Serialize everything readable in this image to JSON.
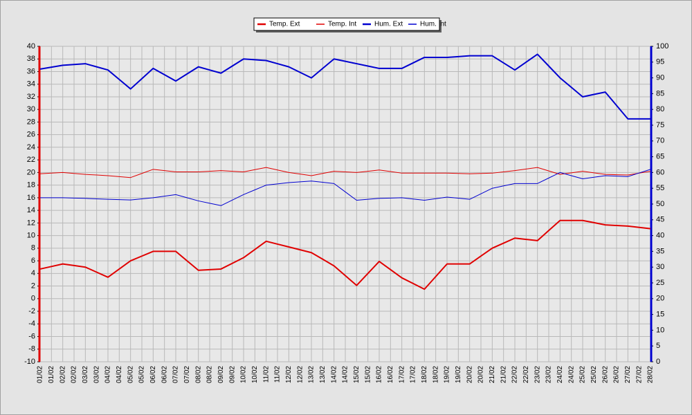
{
  "chart_data": {
    "type": "line",
    "categories": [
      "01/02",
      "01/02",
      "02/02",
      "02/02",
      "03/02",
      "03/02",
      "04/02",
      "04/02",
      "05/02",
      "05/02",
      "06/02",
      "06/02",
      "07/02",
      "07/02",
      "08/02",
      "08/02",
      "09/02",
      "09/02",
      "10/02",
      "10/02",
      "11/02",
      "11/02",
      "12/02",
      "12/02",
      "13/02",
      "13/02",
      "14/02",
      "14/02",
      "15/02",
      "15/02",
      "16/02",
      "16/02",
      "17/02",
      "17/02",
      "18/02",
      "18/02",
      "19/02",
      "19/02",
      "20/02",
      "20/02",
      "21/02",
      "21/02",
      "22/02",
      "22/02",
      "23/02",
      "23/02",
      "24/02",
      "24/02",
      "25/02",
      "25/02",
      "26/02",
      "26/02",
      "27/02",
      "27/02",
      "28/02"
    ],
    "series": [
      {
        "name": "Temp. Ext",
        "color": "#e00000",
        "line_width": 2,
        "axis": "y",
        "values": [
          4.7,
          5.1,
          5.5,
          5.25,
          5.0,
          4.2,
          3.4,
          4.7,
          6.0,
          6.75,
          7.5,
          7.5,
          7.5,
          6.0,
          4.5,
          4.6,
          4.7,
          5.6,
          6.5,
          7.8,
          9.1,
          8.65,
          8.2,
          7.75,
          7.3,
          6.25,
          5.2,
          3.65,
          2.1,
          4.0,
          5.9,
          4.6,
          3.3,
          2.4,
          1.5,
          3.5,
          5.5,
          5.5,
          5.5,
          6.75,
          8.0,
          8.8,
          9.6,
          9.4,
          9.2,
          10.8,
          12.4,
          12.4,
          12.4,
          12.05,
          11.7,
          11.6,
          11.5,
          11.3,
          11.1
        ]
      },
      {
        "name": "Temp. Int",
        "color": "#e00000",
        "line_width": 1,
        "axis": "y",
        "values": [
          19.8,
          19.9,
          20.0,
          19.85,
          19.7,
          19.6,
          19.5,
          19.35,
          19.2,
          19.85,
          20.5,
          20.3,
          20.1,
          20.1,
          20.1,
          20.2,
          20.3,
          20.2,
          20.1,
          20.45,
          20.8,
          20.4,
          20.0,
          19.75,
          19.5,
          19.85,
          20.2,
          20.1,
          20.0,
          20.2,
          20.4,
          20.15,
          19.9,
          19.9,
          19.9,
          19.9,
          19.9,
          19.85,
          19.8,
          19.85,
          19.9,
          20.1,
          20.3,
          20.55,
          20.8,
          20.25,
          19.7,
          19.95,
          20.2,
          19.95,
          19.7,
          19.65,
          19.6,
          19.9,
          20.2
        ]
      },
      {
        "name": "Hum. Ext",
        "color": "#0000d0",
        "line_width": 2,
        "axis": "y2",
        "values": [
          92.8,
          93.4,
          94,
          94.25,
          94.5,
          93.5,
          92.5,
          89.5,
          86.5,
          89.75,
          93,
          91,
          89,
          91.25,
          93.5,
          92.5,
          91.5,
          93.75,
          96,
          95.75,
          95.5,
          94.5,
          93.5,
          91.75,
          90,
          93,
          96,
          95.25,
          94.5,
          93.75,
          93,
          93,
          93,
          94.75,
          96.5,
          96.5,
          96.5,
          96.75,
          97,
          97,
          97,
          94.75,
          92.5,
          95,
          97.5,
          93.75,
          90,
          87,
          84,
          84.75,
          85.5,
          81.25,
          77,
          77,
          77
        ]
      },
      {
        "name": "Hum. Int",
        "color": "#0000d0",
        "line_width": 1,
        "axis": "y2",
        "values": [
          52,
          52,
          52,
          51.9,
          51.8,
          51.65,
          51.5,
          51.4,
          51.3,
          51.65,
          52,
          52.5,
          53,
          52,
          51,
          50.25,
          49.5,
          51.25,
          53,
          54.5,
          56,
          56.4,
          56.8,
          57.05,
          57.3,
          56.9,
          56.5,
          53.85,
          51.2,
          51.5,
          51.8,
          51.9,
          52,
          51.6,
          51.2,
          51.7,
          52.2,
          51.85,
          51.5,
          53.25,
          55,
          55.75,
          56.5,
          56.5,
          56.5,
          58.25,
          60,
          59,
          58,
          58.5,
          59,
          58.85,
          58.7,
          59.85,
          61
        ]
      }
    ],
    "ylim": [
      -10,
      40
    ],
    "yticks": [
      -10,
      -8,
      -6,
      -4,
      -2,
      0,
      2,
      4,
      6,
      8,
      10,
      12,
      14,
      16,
      18,
      20,
      22,
      24,
      26,
      28,
      30,
      32,
      34,
      36,
      38,
      40
    ],
    "y2lim": [
      0,
      100
    ],
    "y2ticks": [
      0,
      5,
      10,
      15,
      20,
      25,
      30,
      35,
      40,
      45,
      50,
      55,
      60,
      65,
      70,
      75,
      80,
      85,
      90,
      95,
      100
    ],
    "y_axis_color": "#e00000",
    "y2_axis_color": "#0000d0",
    "grid": true,
    "legend": "top"
  }
}
